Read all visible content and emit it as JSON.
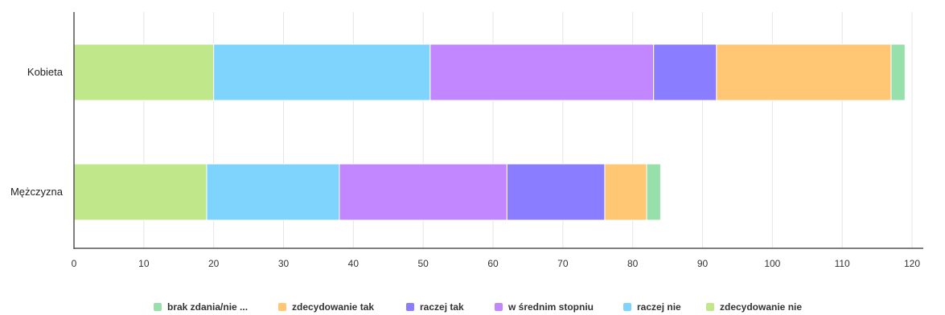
{
  "chart_data": {
    "type": "bar",
    "orientation": "horizontal",
    "stacked": true,
    "categories": [
      "Kobieta",
      "Mężczyzna"
    ],
    "series": [
      {
        "name": "zdecydowanie nie",
        "values": [
          20,
          19
        ],
        "color": "#c0e78a"
      },
      {
        "name": "raczej nie",
        "values": [
          31,
          19
        ],
        "color": "#7fd4fd"
      },
      {
        "name": "w średnim stopniu",
        "values": [
          32,
          24
        ],
        "color": "#c287ff"
      },
      {
        "name": "raczej tak",
        "values": [
          9,
          14
        ],
        "color": "#8a7dff"
      },
      {
        "name": "zdecydowanie tak",
        "values": [
          25,
          6
        ],
        "color": "#ffc674"
      },
      {
        "name": "brak zdania/nie ...",
        "values": [
          2,
          2
        ],
        "color": "#97e0ac"
      }
    ],
    "legend_order": [
      "brak zdania/nie ...",
      "zdecydowanie tak",
      "raczej tak",
      "w średnim stopniu",
      "raczej nie",
      "zdecydowanie nie"
    ],
    "xlim": [
      0,
      120
    ],
    "xticks": [
      0,
      10,
      20,
      30,
      40,
      50,
      60,
      70,
      80,
      90,
      100,
      110,
      120
    ],
    "grid": "vertical",
    "legend_position": "bottom",
    "title": "",
    "xlabel": "",
    "ylabel": ""
  }
}
